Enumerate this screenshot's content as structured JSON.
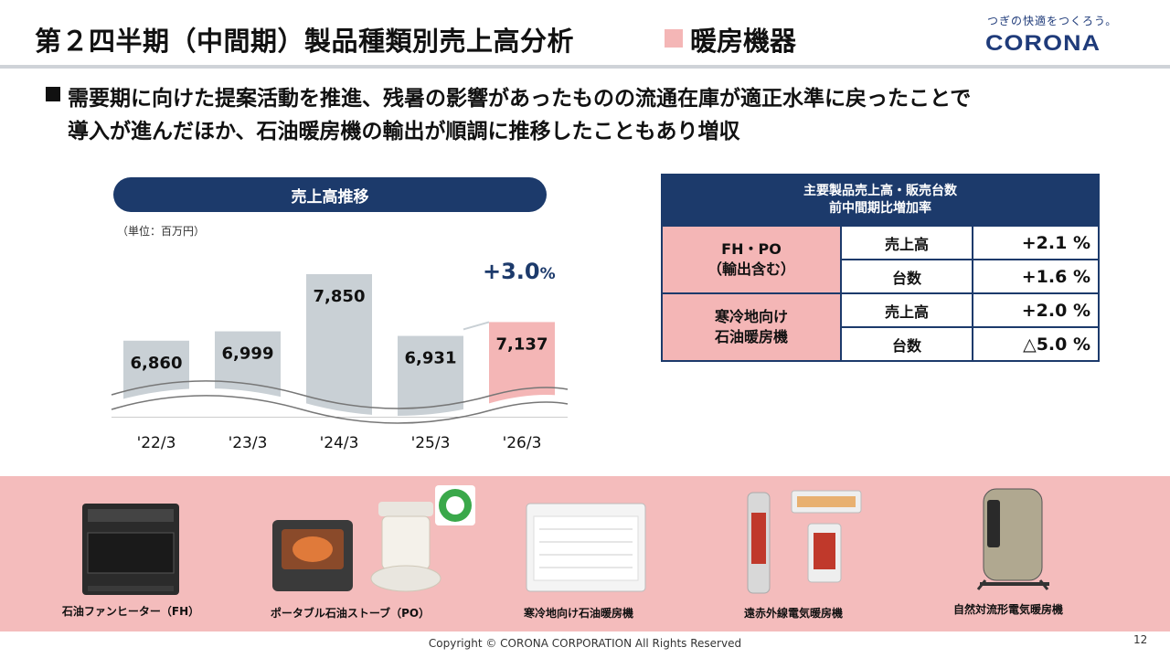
{
  "header": {
    "title": "第２四半期（中間期）製品種類別売上高分析",
    "category": "暖房機器",
    "tagline": "つぎの快適をつくろう。",
    "logo": "CORONA"
  },
  "lead": {
    "line1": "需要期に向けた提案活動を推進、残暑の影響があったものの流通在庫が適正水準に戻ったことで",
    "line2": "導入が進んだほか、石油暖房機の輸出が順調に推移したこともあり増収"
  },
  "chart": {
    "title": "売上高推移",
    "unit": "（単位：百万円）",
    "growth_value": "+3.0",
    "growth_unit": "%"
  },
  "chart_data": {
    "type": "bar",
    "categories": [
      "'22/3",
      "'23/3",
      "'24/3",
      "'25/3",
      "'26/3"
    ],
    "values": [
      6860,
      6999,
      7850,
      6931,
      7137
    ],
    "value_labels": [
      "6,860",
      "6,999",
      "7,850",
      "6,931",
      "7,137"
    ],
    "title": "売上高推移",
    "ylabel": "（単位：百万円）",
    "highlight_index": 4,
    "colors": {
      "bar": "#c9d0d5",
      "highlight": "#f4b6b6"
    },
    "axis_break": true
  },
  "table": {
    "header_line1": "主要製品売上高・販売台数",
    "header_line2": "前中間期比増加率",
    "groups": [
      {
        "name_line1": "FH・PO",
        "name_line2": "（輸出含む）",
        "rows": [
          {
            "metric": "売上高",
            "value": "+2.1 %"
          },
          {
            "metric": "台数",
            "value": "+1.6 %"
          }
        ]
      },
      {
        "name_line1": "寒冷地向け",
        "name_line2": "石油暖房機",
        "rows": [
          {
            "metric": "売上高",
            "value": "+2.0 %"
          },
          {
            "metric": "台数",
            "value": "△5.0 %"
          }
        ]
      }
    ]
  },
  "products": [
    {
      "label": "石油ファンヒーター（FH）"
    },
    {
      "label": "ポータブル石油ストーブ（PO）"
    },
    {
      "label": "寒冷地向け石油暖房機"
    },
    {
      "label": "遠赤外線電気暖房機"
    },
    {
      "label": "自然対流形電気暖房機"
    }
  ],
  "footer": {
    "copyright": "Copyright © CORONA CORPORATION All Rights Reserved",
    "page": "12"
  },
  "colors": {
    "navy": "#1c3a6b",
    "pink": "#f4b6b6",
    "band": "#f4bcbc",
    "gray_bar": "#c9d0d5"
  }
}
